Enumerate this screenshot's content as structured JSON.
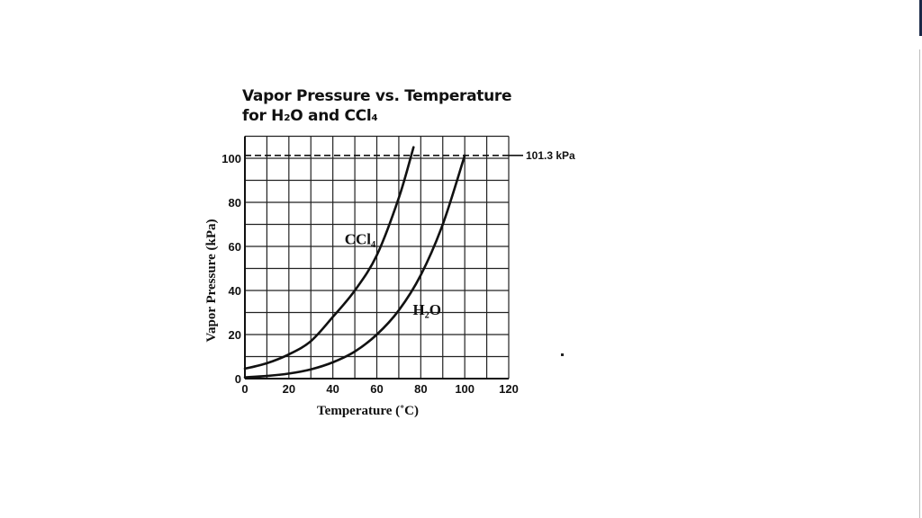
{
  "chart_data": {
    "type": "line",
    "title": "Vapor Pressure vs. Temperature for H2O and CCl4",
    "title_line1": "Vapor Pressure vs. Temperature",
    "title_line2": "for H₂O and CCl₄",
    "xlabel": "Temperature (˚C)",
    "ylabel": "Vapor Pressure (kPa)",
    "xlim": [
      0,
      120
    ],
    "ylim": [
      0,
      110
    ],
    "x_ticks": [
      0,
      20,
      40,
      60,
      80,
      100,
      120
    ],
    "y_ticks": [
      0,
      20,
      40,
      60,
      80,
      100
    ],
    "grid": true,
    "grid_step_x": 10,
    "grid_step_y": 10,
    "reference_line": {
      "y": 101.3,
      "label": "101.3 kPa",
      "style": "dashed"
    },
    "series": [
      {
        "name": "CCl4",
        "label": "CCl₄",
        "x": [
          0,
          10,
          20,
          30,
          40,
          50,
          60,
          70,
          76.7
        ],
        "values": [
          4.5,
          7,
          11,
          17,
          28,
          40,
          56,
          82,
          105
        ]
      },
      {
        "name": "H2O",
        "label": "H₂O",
        "x": [
          0,
          10,
          20,
          30,
          40,
          50,
          60,
          70,
          80,
          90,
          100
        ],
        "values": [
          0.6,
          1.2,
          2.3,
          4.2,
          7.4,
          12.3,
          20,
          31,
          47,
          70,
          101.3
        ]
      }
    ],
    "annotations": [
      {
        "text": "CCl₄",
        "x": 47,
        "y": 63
      },
      {
        "text": "H₂O",
        "x": 78,
        "y": 31
      }
    ],
    "legend": "none (inline curve labels)"
  }
}
